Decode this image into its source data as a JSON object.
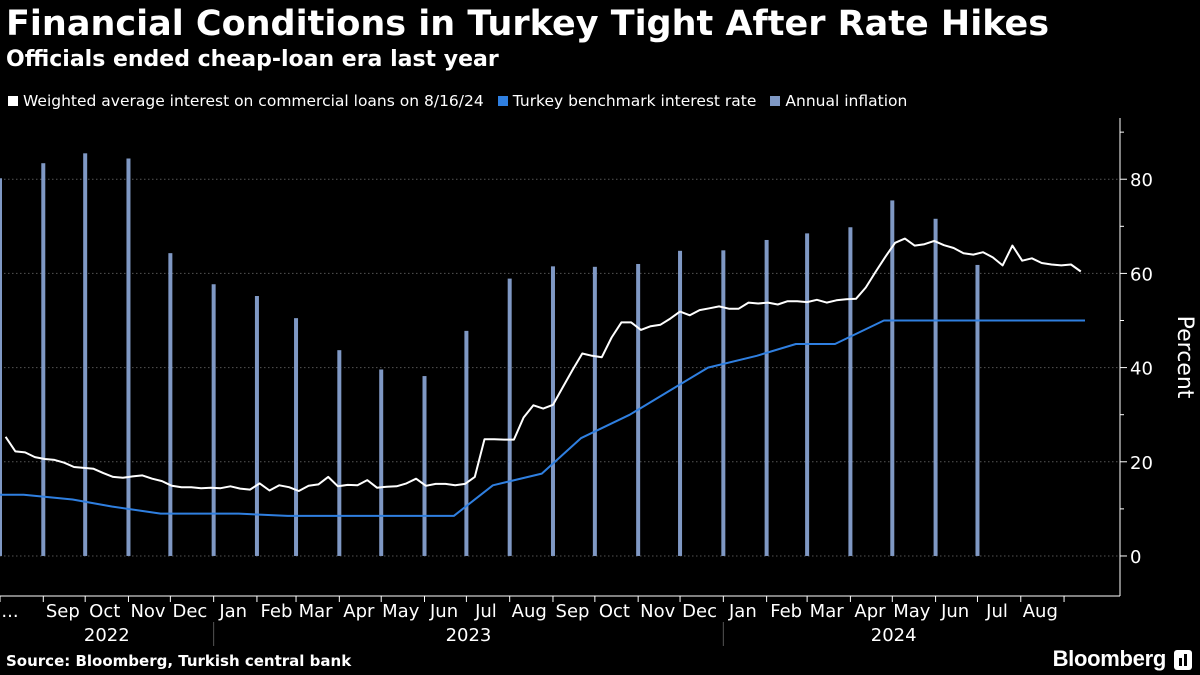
{
  "title": "Financial Conditions in Turkey Tight After Rate Hikes",
  "subtitle": "Officials ended cheap-loan era last year",
  "source": "Source: Bloomberg, Turkish central bank",
  "brand": "Bloomberg",
  "colors": {
    "background": "#000000",
    "loans": "#ffffff",
    "benchmark": "#2f7fe0",
    "inflation": "#7f98c4",
    "axis": "#ffffff",
    "grid": "#555555"
  },
  "chart_data": {
    "type": "line",
    "ylabel": "Percent",
    "ylim": [
      -8.5,
      93
    ],
    "yticks": [
      0,
      20,
      40,
      60,
      80
    ],
    "grid": "horizontal dashed",
    "legend_position": "top-left",
    "x_month_labels": [
      "...",
      "Sep",
      "Oct",
      "Nov",
      "Dec",
      "Jan",
      "Feb",
      "Mar",
      "Apr",
      "May",
      "Jun",
      "Jul",
      "Aug",
      "Sep",
      "Oct",
      "Nov",
      "Dec",
      "Jan",
      "Feb",
      "Mar",
      "Apr",
      "May",
      "Jun",
      "Jul",
      "Aug"
    ],
    "year_labels": [
      {
        "label": "2022",
        "from": "2022-08",
        "to": "2022-12"
      },
      {
        "label": "2023",
        "from": "2023-01",
        "to": "2023-12"
      },
      {
        "label": "2024",
        "from": "2024-01",
        "to": "2024-08"
      }
    ],
    "series": [
      {
        "name": "Weighted average interest on commercial loans on 8/16/24",
        "kind": "line",
        "points": [
          [
            "2022-08-05",
            25.3
          ],
          [
            "2022-08-12",
            22.2
          ],
          [
            "2022-08-19",
            22.0
          ],
          [
            "2022-08-26",
            21.0
          ],
          [
            "2022-09-02",
            20.6
          ],
          [
            "2022-09-09",
            20.4
          ],
          [
            "2022-09-16",
            19.8
          ],
          [
            "2022-09-23",
            18.9
          ],
          [
            "2022-09-30",
            18.7
          ],
          [
            "2022-10-07",
            18.5
          ],
          [
            "2022-10-14",
            17.6
          ],
          [
            "2022-10-21",
            16.8
          ],
          [
            "2022-10-28",
            16.6
          ],
          [
            "2022-11-04",
            16.9
          ],
          [
            "2022-11-11",
            17.1
          ],
          [
            "2022-11-18",
            16.4
          ],
          [
            "2022-11-25",
            15.9
          ],
          [
            "2022-12-02",
            14.9
          ],
          [
            "2022-12-09",
            14.6
          ],
          [
            "2022-12-16",
            14.6
          ],
          [
            "2022-12-23",
            14.4
          ],
          [
            "2022-12-30",
            14.5
          ],
          [
            "2023-01-06",
            14.4
          ],
          [
            "2023-01-13",
            14.8
          ],
          [
            "2023-01-20",
            14.3
          ],
          [
            "2023-01-27",
            14.1
          ],
          [
            "2023-02-03",
            15.4
          ],
          [
            "2023-02-10",
            13.9
          ],
          [
            "2023-02-17",
            15.0
          ],
          [
            "2023-02-24",
            14.6
          ],
          [
            "2023-03-03",
            13.8
          ],
          [
            "2023-03-10",
            14.9
          ],
          [
            "2023-03-17",
            15.2
          ],
          [
            "2023-03-24",
            16.8
          ],
          [
            "2023-03-31",
            14.8
          ],
          [
            "2023-04-07",
            15.1
          ],
          [
            "2023-04-14",
            15.0
          ],
          [
            "2023-04-21",
            16.1
          ],
          [
            "2023-04-28",
            14.5
          ],
          [
            "2023-05-05",
            14.7
          ],
          [
            "2023-05-12",
            14.8
          ],
          [
            "2023-05-19",
            15.4
          ],
          [
            "2023-05-26",
            16.4
          ],
          [
            "2023-06-02",
            14.9
          ],
          [
            "2023-06-09",
            15.3
          ],
          [
            "2023-06-16",
            15.3
          ],
          [
            "2023-06-23",
            15.0
          ],
          [
            "2023-06-30",
            15.3
          ],
          [
            "2023-07-07",
            16.8
          ],
          [
            "2023-07-14",
            24.8
          ],
          [
            "2023-07-21",
            24.8
          ],
          [
            "2023-07-28",
            24.7
          ],
          [
            "2023-08-04",
            24.7
          ],
          [
            "2023-08-11",
            29.4
          ],
          [
            "2023-08-18",
            32.0
          ],
          [
            "2023-08-25",
            31.3
          ],
          [
            "2023-09-01",
            32.1
          ],
          [
            "2023-09-08",
            35.8
          ],
          [
            "2023-09-15",
            39.5
          ],
          [
            "2023-09-22",
            43.0
          ],
          [
            "2023-09-29",
            42.5
          ],
          [
            "2023-10-06",
            42.2
          ],
          [
            "2023-10-13",
            46.4
          ],
          [
            "2023-10-20",
            49.6
          ],
          [
            "2023-10-27",
            49.6
          ],
          [
            "2023-11-03",
            48.0
          ],
          [
            "2023-11-10",
            48.8
          ],
          [
            "2023-11-17",
            49.1
          ],
          [
            "2023-11-24",
            50.4
          ],
          [
            "2023-12-01",
            51.9
          ],
          [
            "2023-12-08",
            51.1
          ],
          [
            "2023-12-15",
            52.2
          ],
          [
            "2023-12-22",
            52.6
          ],
          [
            "2023-12-29",
            53.0
          ],
          [
            "2024-01-05",
            52.5
          ],
          [
            "2024-01-12",
            52.5
          ],
          [
            "2024-01-19",
            53.8
          ],
          [
            "2024-01-26",
            53.6
          ],
          [
            "2024-02-02",
            53.8
          ],
          [
            "2024-02-09",
            53.4
          ],
          [
            "2024-02-16",
            54.1
          ],
          [
            "2024-02-23",
            54.1
          ],
          [
            "2024-03-01",
            53.9
          ],
          [
            "2024-03-08",
            54.4
          ],
          [
            "2024-03-15",
            53.8
          ],
          [
            "2024-03-22",
            54.3
          ],
          [
            "2024-03-29",
            54.5
          ],
          [
            "2024-04-05",
            54.6
          ],
          [
            "2024-04-12",
            57.0
          ],
          [
            "2024-04-19",
            60.3
          ],
          [
            "2024-04-26",
            63.5
          ],
          [
            "2024-05-03",
            66.5
          ],
          [
            "2024-05-10",
            67.4
          ],
          [
            "2024-05-17",
            65.9
          ],
          [
            "2024-05-24",
            66.2
          ],
          [
            "2024-05-31",
            66.9
          ],
          [
            "2024-06-07",
            66.0
          ],
          [
            "2024-06-14",
            65.4
          ],
          [
            "2024-06-21",
            64.3
          ],
          [
            "2024-06-28",
            64.0
          ],
          [
            "2024-07-05",
            64.5
          ],
          [
            "2024-07-12",
            63.4
          ],
          [
            "2024-07-19",
            61.7
          ],
          [
            "2024-07-26",
            65.9
          ],
          [
            "2024-08-02",
            62.7
          ],
          [
            "2024-08-09",
            63.2
          ],
          [
            "2024-08-16",
            62.2
          ],
          [
            "2024-08-23",
            61.9
          ],
          [
            "2024-08-30",
            61.7
          ],
          [
            "2024-09-06",
            61.9
          ],
          [
            "2024-09-13",
            60.4
          ]
        ]
      },
      {
        "name": "Turkey benchmark interest rate",
        "kind": "line",
        "points": [
          [
            "2022-08-01",
            13.0
          ],
          [
            "2022-08-18",
            13.0
          ],
          [
            "2022-09-22",
            12.0
          ],
          [
            "2022-10-20",
            10.5
          ],
          [
            "2022-11-24",
            9.0
          ],
          [
            "2023-01-19",
            9.0
          ],
          [
            "2023-02-23",
            8.5
          ],
          [
            "2023-06-22",
            8.5
          ],
          [
            "2023-07-20",
            15.0
          ],
          [
            "2023-08-24",
            17.5
          ],
          [
            "2023-09-21",
            25.0
          ],
          [
            "2023-10-26",
            30.0
          ],
          [
            "2023-11-23",
            35.0
          ],
          [
            "2023-12-21",
            40.0
          ],
          [
            "2024-01-25",
            42.5
          ],
          [
            "2024-02-22",
            45.0
          ],
          [
            "2024-03-21",
            45.0
          ],
          [
            "2024-04-25",
            50.0
          ],
          [
            "2024-09-16",
            50.0
          ]
        ]
      },
      {
        "name": "Annual inflation",
        "kind": "bar",
        "points": [
          [
            "2022-08",
            80.2
          ],
          [
            "2022-09",
            83.4
          ],
          [
            "2022-10",
            85.5
          ],
          [
            "2022-11",
            84.4
          ],
          [
            "2022-12",
            64.3
          ],
          [
            "2023-01",
            57.7
          ],
          [
            "2023-02",
            55.2
          ],
          [
            "2023-03",
            50.5
          ],
          [
            "2023-04",
            43.7
          ],
          [
            "2023-05",
            39.6
          ],
          [
            "2023-06",
            38.2
          ],
          [
            "2023-07",
            47.8
          ],
          [
            "2023-08",
            58.9
          ],
          [
            "2023-09",
            61.5
          ],
          [
            "2023-10",
            61.4
          ],
          [
            "2023-11",
            62.0
          ],
          [
            "2023-12",
            64.8
          ],
          [
            "2024-01",
            64.9
          ],
          [
            "2024-02",
            67.1
          ],
          [
            "2024-03",
            68.5
          ],
          [
            "2024-04",
            69.8
          ],
          [
            "2024-05",
            75.5
          ],
          [
            "2024-06",
            71.6
          ],
          [
            "2024-07",
            61.8
          ]
        ]
      }
    ]
  }
}
